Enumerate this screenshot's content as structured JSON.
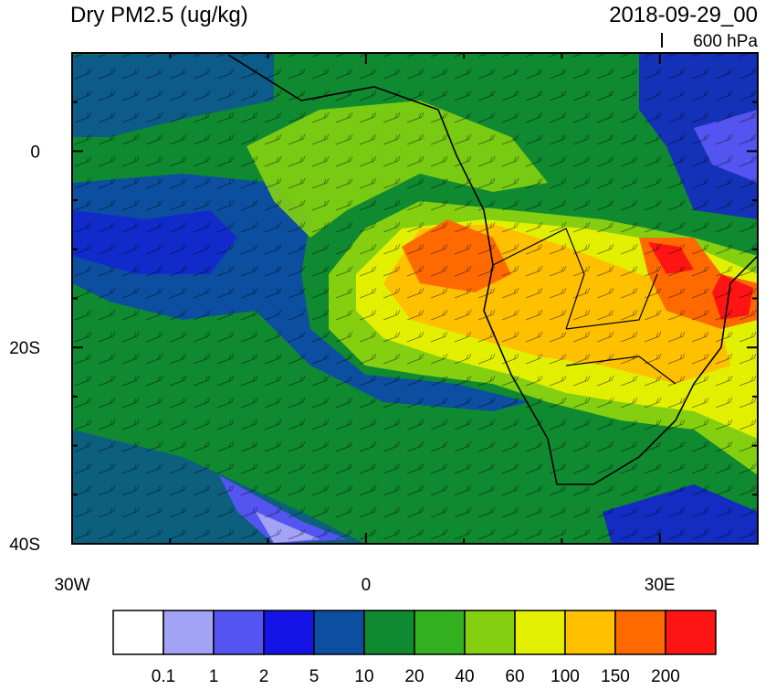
{
  "title": "Dry PM2.5 (ug/kg)",
  "timestamp": "2018-09-29_00",
  "level": "600 hPa",
  "map": {
    "lon_range": [
      -30,
      40
    ],
    "lat_range": [
      -40,
      10
    ],
    "lon_ticks": [
      {
        "value": -30,
        "label": "30W"
      },
      {
        "value": 0,
        "label": "0"
      },
      {
        "value": 30,
        "label": "30E"
      }
    ],
    "lat_ticks": [
      {
        "value": 0,
        "label": "0"
      },
      {
        "value": -20,
        "label": "20S"
      },
      {
        "value": -40,
        "label": "40S"
      }
    ],
    "lon_minor_ticks": [
      -20,
      -10,
      10,
      20,
      40
    ],
    "lat_minor_ticks": [
      5,
      -5,
      -10,
      -15,
      -25,
      -30,
      -35
    ]
  },
  "colorbar": {
    "colors": [
      "#ffffff",
      "#a3a3f5",
      "#5454f0",
      "#1414e6",
      "#0c4fa0",
      "#108a30",
      "#32b020",
      "#84d010",
      "#e2f000",
      "#ffc000",
      "#ff6a00",
      "#ff1414"
    ],
    "labels": [
      0.1,
      1,
      2,
      5,
      10,
      20,
      40,
      60,
      100,
      150,
      200
    ]
  }
}
